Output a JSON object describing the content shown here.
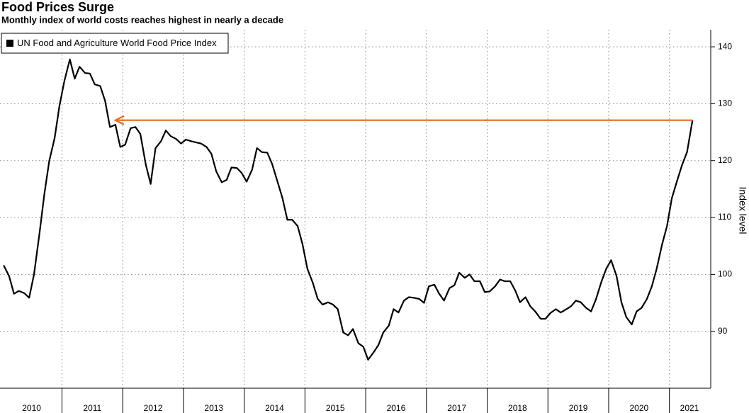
{
  "chart_data": {
    "type": "line",
    "title": "Food Prices Surge",
    "subtitle": "Monthly index of world costs reaches highest in nearly a decade",
    "y_label": "Index level",
    "x": [
      2010.04,
      2010.13,
      2010.21,
      2010.29,
      2010.38,
      2010.46,
      2010.54,
      2010.63,
      2010.71,
      2010.79,
      2010.88,
      2010.96,
      2011.04,
      2011.13,
      2011.21,
      2011.29,
      2011.38,
      2011.46,
      2011.54,
      2011.63,
      2011.71,
      2011.79,
      2011.88,
      2011.96,
      2012.04,
      2012.13,
      2012.21,
      2012.29,
      2012.38,
      2012.46,
      2012.54,
      2012.63,
      2012.71,
      2012.79,
      2012.88,
      2012.96,
      2013.04,
      2013.13,
      2013.21,
      2013.29,
      2013.38,
      2013.46,
      2013.54,
      2013.63,
      2013.71,
      2013.79,
      2013.88,
      2013.96,
      2014.04,
      2014.13,
      2014.21,
      2014.29,
      2014.38,
      2014.46,
      2014.54,
      2014.63,
      2014.71,
      2014.79,
      2014.88,
      2014.96,
      2015.04,
      2015.13,
      2015.21,
      2015.29,
      2015.38,
      2015.46,
      2015.54,
      2015.63,
      2015.71,
      2015.79,
      2015.88,
      2015.96,
      2016.04,
      2016.13,
      2016.21,
      2016.29,
      2016.38,
      2016.46,
      2016.54,
      2016.63,
      2016.71,
      2016.79,
      2016.88,
      2016.96,
      2017.04,
      2017.13,
      2017.21,
      2017.29,
      2017.38,
      2017.46,
      2017.54,
      2017.63,
      2017.71,
      2017.79,
      2017.88,
      2017.96,
      2018.04,
      2018.13,
      2018.21,
      2018.29,
      2018.38,
      2018.46,
      2018.54,
      2018.63,
      2018.71,
      2018.79,
      2018.88,
      2018.96,
      2019.04,
      2019.13,
      2019.21,
      2019.29,
      2019.38,
      2019.46,
      2019.54,
      2019.63,
      2019.71,
      2019.79,
      2019.88,
      2019.96,
      2020.04,
      2020.13,
      2020.21,
      2020.29,
      2020.38,
      2020.46,
      2020.54,
      2020.63,
      2020.71,
      2020.79,
      2020.88,
      2020.96,
      2021.04,
      2021.13,
      2021.21,
      2021.29,
      2021.38
    ],
    "series": [
      {
        "name": "UN Food and Agriculture World Food Price Index",
        "color": "#000000",
        "values": [
          101.6,
          99.7,
          96.6,
          97.1,
          96.7,
          95.9,
          100,
          107.2,
          114.1,
          119.9,
          124,
          129.7,
          134,
          137.8,
          134.4,
          136.5,
          135.4,
          135.3,
          133.4,
          133.1,
          130.5,
          125.9,
          126.3,
          122.4,
          122.8,
          125.7,
          125.9,
          124.7,
          119.3,
          115.9,
          122.2,
          123.4,
          125.3,
          124.3,
          123.8,
          123,
          123.7,
          123.4,
          123.2,
          123,
          122.4,
          121.2,
          118.1,
          116.2,
          116.6,
          118.8,
          118.7,
          117.8,
          116.3,
          118.4,
          122.2,
          121.5,
          121.4,
          119.4,
          116.6,
          113.4,
          109.6,
          109.6,
          108.5,
          105.3,
          101,
          98.5,
          95.7,
          94.7,
          95.1,
          94.7,
          93.9,
          89.8,
          89.3,
          90.4,
          87.9,
          87.3,
          85,
          86.3,
          87.6,
          89.8,
          91,
          93.9,
          93.3,
          95.4,
          96,
          95.9,
          95.7,
          95,
          97.9,
          98.2,
          96.6,
          95.4,
          97.6,
          98.1,
          100.3,
          99.4,
          100,
          98.8,
          98.8,
          96.9,
          97,
          97.9,
          99.1,
          98.8,
          98.8,
          97.2,
          95.1,
          96,
          94.4,
          93.5,
          92.2,
          92.2,
          93.2,
          93.9,
          93.3,
          93.8,
          94.4,
          95.4,
          95.1,
          94.1,
          93.5,
          95.6,
          98.7,
          101,
          102.5,
          99.7,
          95.1,
          92.5,
          91.2,
          93.5,
          94.1,
          95.7,
          97.9,
          101,
          105.3,
          108.5,
          113.4,
          116.6,
          119.3,
          121.5,
          127.1
        ]
      }
    ],
    "xlim": [
      2009.98,
      2021.68
    ],
    "xticks": [
      2010,
      2011,
      2012,
      2013,
      2014,
      2015,
      2016,
      2017,
      2018,
      2019,
      2020,
      2021
    ],
    "ylim": [
      80,
      143
    ],
    "yticks": [
      90,
      100,
      110,
      120,
      130,
      140
    ],
    "grid": true,
    "legend": "top-left",
    "annotation_arrow": {
      "x": [
        2011.88,
        2021.38
      ],
      "color": "#e8691e"
    }
  }
}
